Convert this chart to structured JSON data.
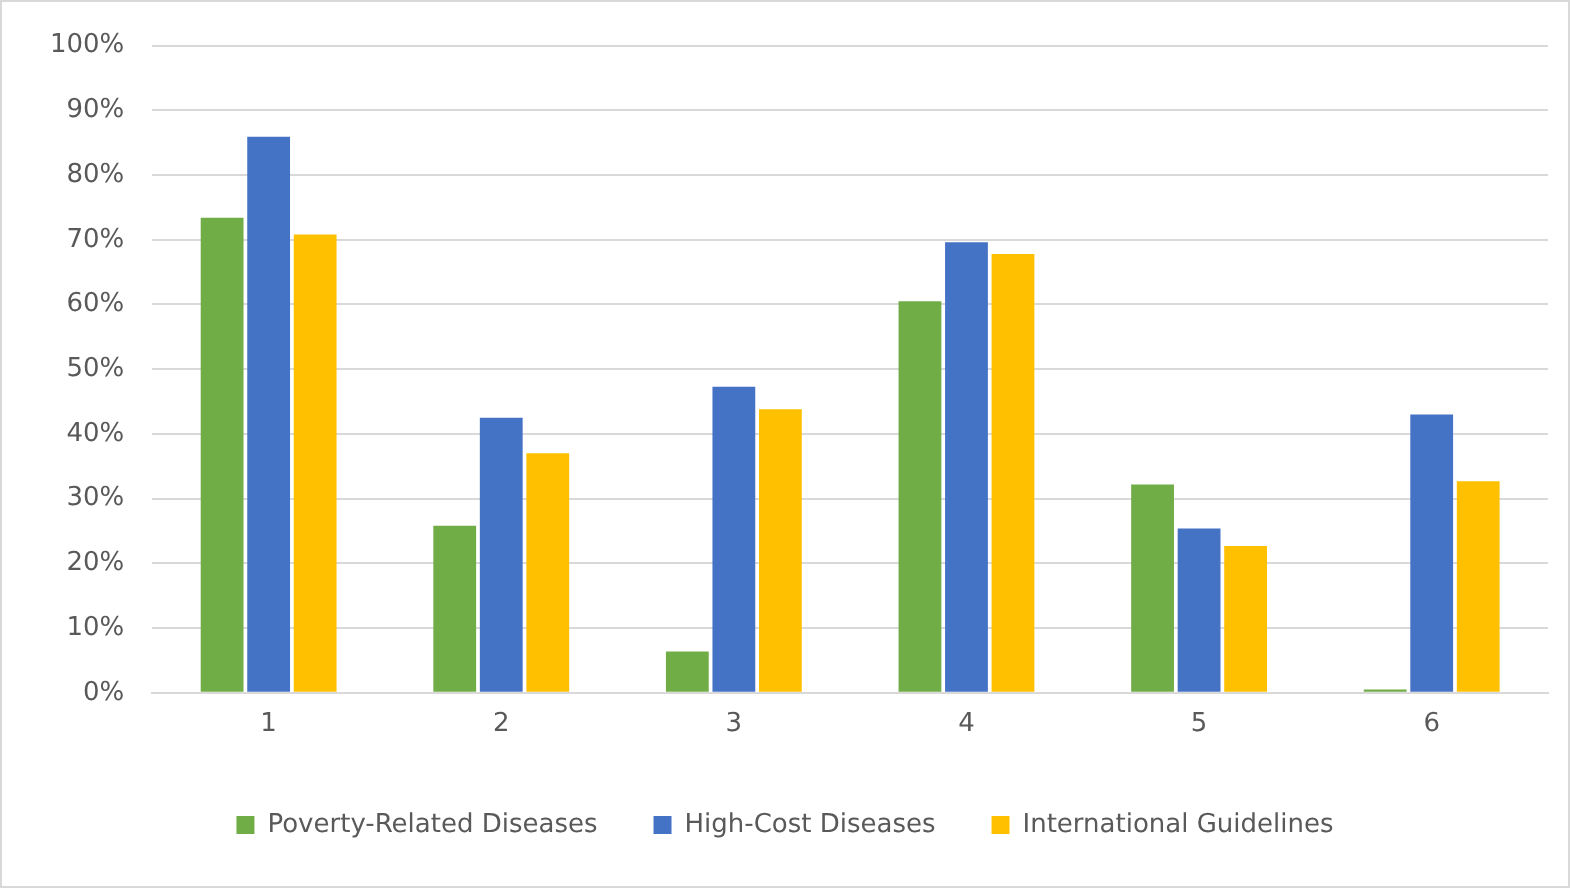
{
  "chart_data": {
    "type": "bar",
    "categories": [
      "1",
      "2",
      "3",
      "4",
      "5",
      "6"
    ],
    "series": [
      {
        "name": "Poverty-Related Diseases",
        "color": "#70ad47",
        "values": [
          73.4,
          25.8,
          6.4,
          60.5,
          32.2,
          0.5
        ]
      },
      {
        "name": "High-Cost Diseases",
        "color": "#4472c4",
        "values": [
          85.9,
          42.5,
          47.3,
          69.6,
          25.4,
          43.0
        ]
      },
      {
        "name": "International Guidelines",
        "color": "#ffc000",
        "values": [
          70.8,
          37.0,
          43.8,
          67.8,
          22.7,
          32.7
        ]
      }
    ],
    "ylim": [
      0,
      100
    ],
    "yticks": [
      {
        "value": 0,
        "label": "0%"
      },
      {
        "value": 10,
        "label": "10%"
      },
      {
        "value": 20,
        "label": "20%"
      },
      {
        "value": 30,
        "label": "30%"
      },
      {
        "value": 40,
        "label": "40%"
      },
      {
        "value": 50,
        "label": "50%"
      },
      {
        "value": 60,
        "label": "60%"
      },
      {
        "value": 70,
        "label": "70%"
      },
      {
        "value": 80,
        "label": "80%"
      },
      {
        "value": 90,
        "label": "90%"
      },
      {
        "value": 100,
        "label": "100%"
      }
    ],
    "grid": "y",
    "legend": "bottom"
  }
}
